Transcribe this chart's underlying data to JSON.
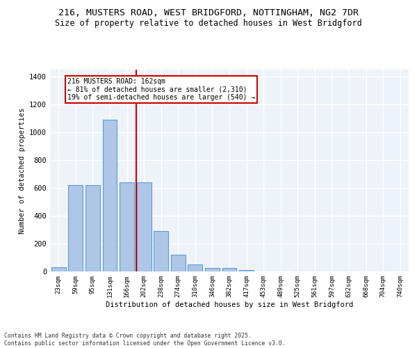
{
  "title_line1": "216, MUSTERS ROAD, WEST BRIDGFORD, NOTTINGHAM, NG2 7DR",
  "title_line2": "Size of property relative to detached houses in West Bridgford",
  "xlabel": "Distribution of detached houses by size in West Bridgford",
  "ylabel": "Number of detached properties",
  "categories": [
    "23sqm",
    "59sqm",
    "95sqm",
    "131sqm",
    "166sqm",
    "202sqm",
    "238sqm",
    "274sqm",
    "310sqm",
    "346sqm",
    "382sqm",
    "417sqm",
    "453sqm",
    "489sqm",
    "525sqm",
    "561sqm",
    "597sqm",
    "632sqm",
    "668sqm",
    "704sqm",
    "740sqm"
  ],
  "bar_values": [
    30,
    620,
    620,
    1090,
    640,
    640,
    290,
    120,
    50,
    25,
    25,
    10,
    0,
    0,
    0,
    0,
    0,
    0,
    0,
    0,
    0
  ],
  "bar_color": "#aec6e8",
  "bar_edgecolor": "#5b9bd5",
  "background_color": "#eef3fa",
  "grid_color": "#ffffff",
  "vline_x": 4.55,
  "vline_color": "#cc0000",
  "annotation_text": "216 MUSTERS ROAD: 162sqm\n← 81% of detached houses are smaller (2,310)\n19% of semi-detached houses are larger (540) →",
  "annotation_box_color": "#cc0000",
  "ylim": [
    0,
    1450
  ],
  "yticks": [
    0,
    200,
    400,
    600,
    800,
    1000,
    1200,
    1400
  ],
  "footnote1": "Contains HM Land Registry data © Crown copyright and database right 2025.",
  "footnote2": "Contains public sector information licensed under the Open Government Licence v3.0."
}
